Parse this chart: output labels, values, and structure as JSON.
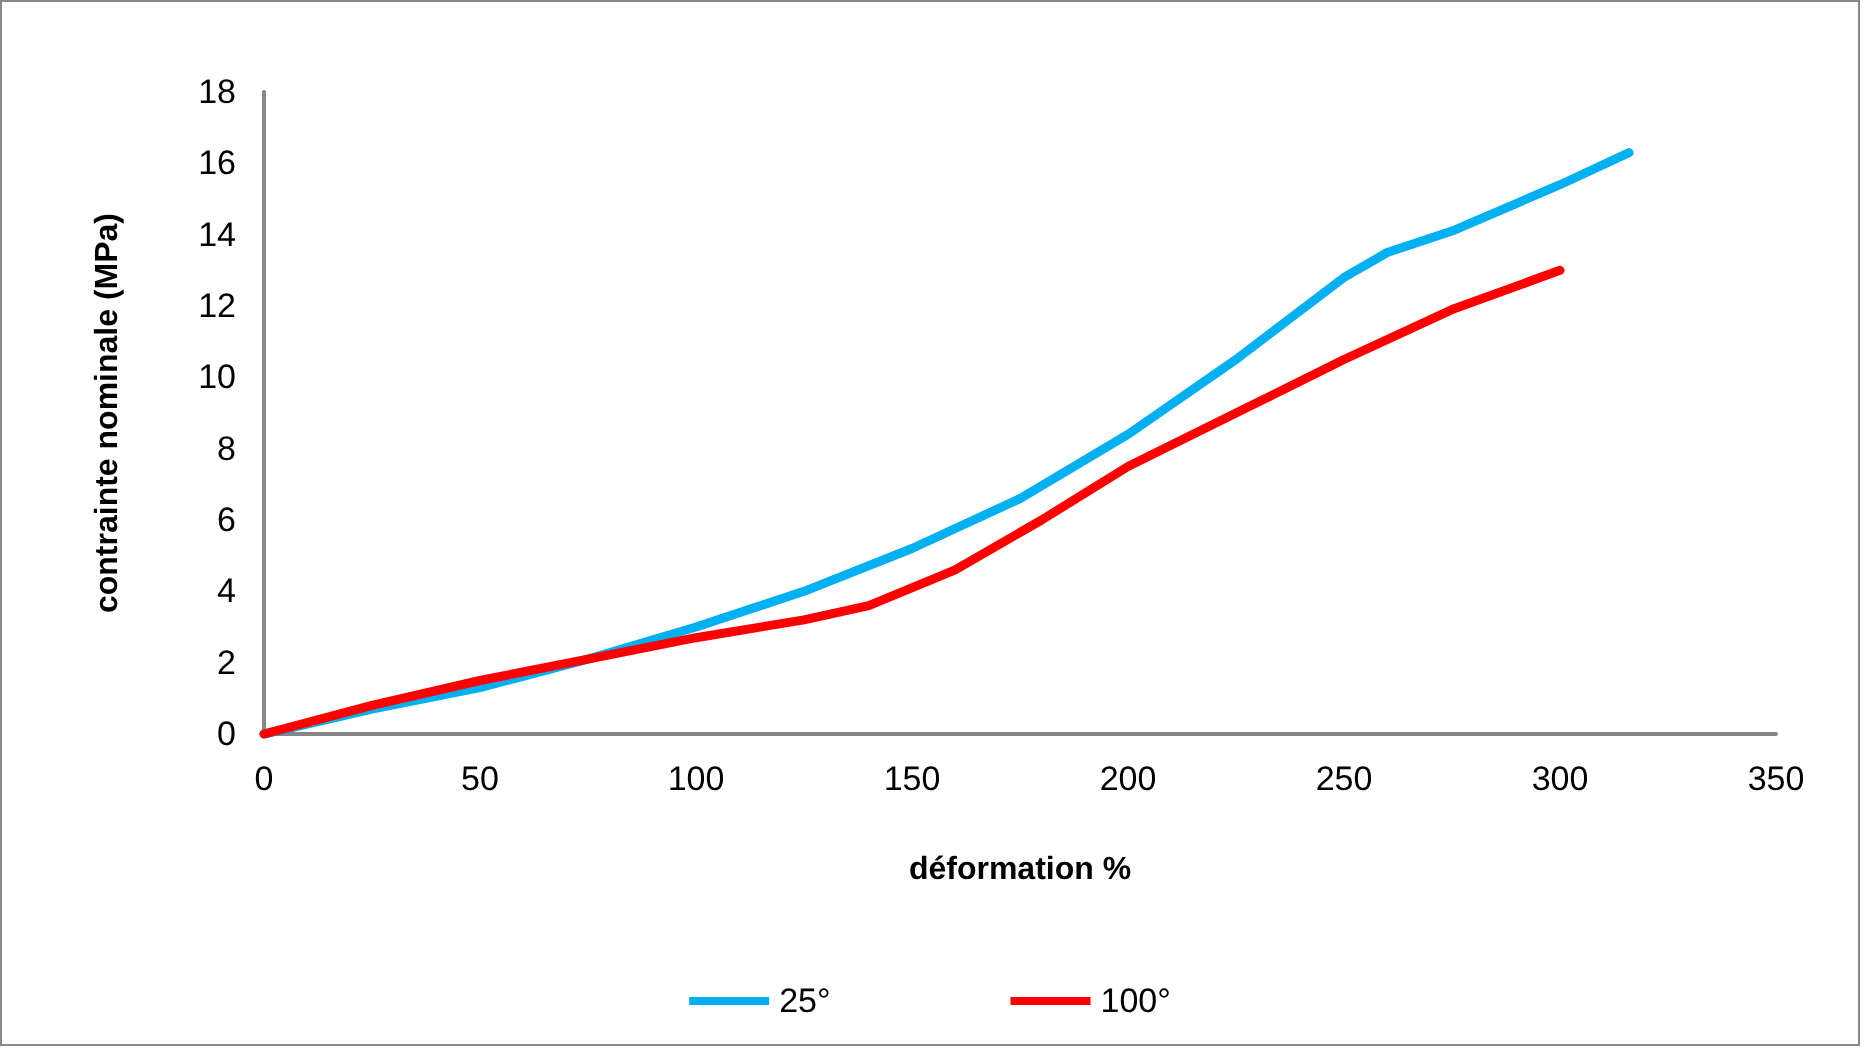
{
  "chart_data": {
    "type": "line",
    "xlabel": "déformation %",
    "ylabel": "contrainte nominale (MPa)",
    "xlim": [
      0,
      350
    ],
    "xticks": [
      0,
      50,
      100,
      150,
      200,
      250,
      300,
      350
    ],
    "ylim": [
      0,
      18
    ],
    "yticks": [
      0,
      2,
      4,
      6,
      8,
      10,
      12,
      14,
      16,
      18
    ],
    "grid": false,
    "legend": "bottom",
    "marker": "none",
    "line_style": "solid",
    "series": [
      {
        "name": "25°",
        "color": "#00b0f0",
        "x": [
          0,
          25,
          50,
          75,
          100,
          125,
          150,
          175,
          200,
          225,
          250,
          260,
          275,
          300,
          316
        ],
        "values": [
          0,
          0.7,
          1.3,
          2.1,
          3.0,
          4.0,
          5.2,
          6.6,
          8.4,
          10.5,
          12.8,
          13.5,
          14.1,
          15.4,
          16.3
        ]
      },
      {
        "name": "100°",
        "color": "#ff0000",
        "x": [
          0,
          25,
          50,
          75,
          100,
          125,
          140,
          160,
          180,
          200,
          225,
          250,
          275,
          300
        ],
        "values": [
          0,
          0.8,
          1.5,
          2.1,
          2.7,
          3.2,
          3.6,
          4.6,
          6.0,
          7.5,
          9.0,
          10.5,
          11.9,
          13.0
        ]
      }
    ]
  }
}
